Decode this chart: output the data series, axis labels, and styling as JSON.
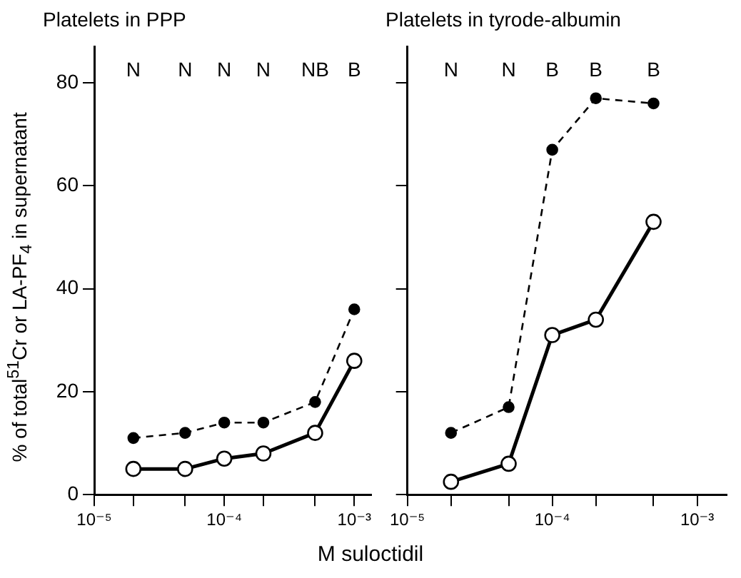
{
  "chart_data": [
    {
      "type": "line",
      "title": "Platelets in PPP",
      "xlabel": "M suloctidil",
      "ylabel": "% of total$^{51}$Cr or LA-PF$_{4}$ in supernatant",
      "log": "x",
      "grid": false,
      "marker": "circle",
      "xlim": [
        1e-05,
        0.00135
      ],
      "xticks": [
        {
          "value": 1e-05,
          "label": "10⁻⁵"
        },
        {
          "value": 2e-05,
          "label": null
        },
        {
          "value": 5e-05,
          "label": null
        },
        {
          "value": 0.0001,
          "label": "10⁻⁴"
        },
        {
          "value": 0.0002,
          "label": null
        },
        {
          "value": 0.0005,
          "label": null
        },
        {
          "value": 0.001,
          "label": "10⁻³"
        }
      ],
      "ylim": [
        0,
        87
      ],
      "yticks": [
        0,
        20,
        40,
        60,
        80
      ],
      "x": [
        2e-05,
        5e-05,
        0.0001,
        0.0002,
        0.0005,
        0.001
      ],
      "series": [
        {
          "color": "#000000",
          "line_style": "dashed",
          "values": [
            11,
            12,
            14,
            14,
            18,
            36
          ]
        },
        {
          "color": "#000000",
          "line_style": "solid",
          "values": [
            5,
            5,
            7,
            8,
            12,
            26
          ]
        }
      ],
      "annotations": [
        "N",
        "N",
        "N",
        "N",
        "NB",
        "B"
      ]
    },
    {
      "type": "line",
      "title": "Platelets in tyrode-albumin",
      "log": "x",
      "grid": false,
      "marker": "circle",
      "tick_labels": "x",
      "xlim": [
        1e-05,
        0.0016
      ],
      "xticks": [
        {
          "value": 1e-05,
          "label": "10⁻⁵"
        },
        {
          "value": 2e-05,
          "label": null
        },
        {
          "value": 5e-05,
          "label": null
        },
        {
          "value": 0.0001,
          "label": "10⁻⁴"
        },
        {
          "value": 0.0002,
          "label": null
        },
        {
          "value": 0.0005,
          "label": null
        },
        {
          "value": 0.001,
          "label": "10⁻³"
        }
      ],
      "ylim": [
        0,
        87
      ],
      "yticks": [
        0,
        20,
        40,
        60,
        80
      ],
      "x": [
        2e-05,
        5e-05,
        0.0001,
        0.0002,
        0.0005
      ],
      "series": [
        {
          "color": "#000000",
          "line_style": "dashed",
          "values": [
            12,
            17,
            67,
            77,
            76
          ]
        },
        {
          "color": "#000000",
          "line_style": "solid",
          "values": [
            2.5,
            6,
            31,
            34,
            53
          ]
        }
      ],
      "annotations": [
        "N",
        "N",
        "B",
        "B",
        "B"
      ]
    }
  ]
}
